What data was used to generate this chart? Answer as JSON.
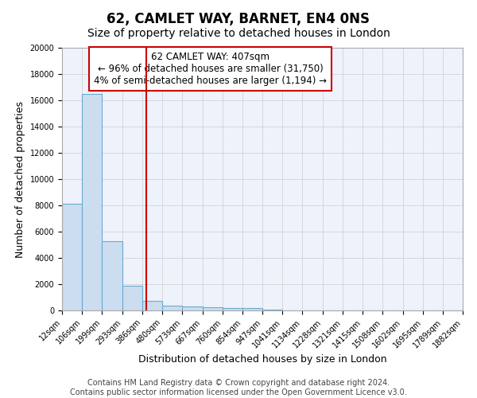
{
  "title": "62, CAMLET WAY, BARNET, EN4 0NS",
  "subtitle": "Size of property relative to detached houses in London",
  "xlabel": "Distribution of detached houses by size in London",
  "ylabel": "Number of detached properties",
  "footnote1": "Contains HM Land Registry data © Crown copyright and database right 2024.",
  "footnote2": "Contains public sector information licensed under the Open Government Licence v3.0.",
  "annotation_line1": "62 CAMLET WAY: 407sqm",
  "annotation_line2": "← 96% of detached houses are smaller (31,750)",
  "annotation_line3": "4% of semi-detached houses are larger (1,194) →",
  "bar_color": "#ccddf0",
  "bar_edge_color": "#6aabd2",
  "vline_color": "#cc0000",
  "vline_x": 407,
  "bin_edges": [
    12,
    106,
    199,
    293,
    386,
    480,
    573,
    667,
    760,
    854,
    947,
    1041,
    1134,
    1228,
    1321,
    1415,
    1508,
    1602,
    1695,
    1789,
    1882
  ],
  "bar_heights": [
    8100,
    16500,
    5300,
    1900,
    700,
    350,
    275,
    230,
    200,
    175,
    50,
    30,
    20,
    15,
    10,
    8,
    6,
    5,
    4,
    3
  ],
  "ylim": [
    0,
    20000
  ],
  "yticks": [
    0,
    2000,
    4000,
    6000,
    8000,
    10000,
    12000,
    14000,
    16000,
    18000,
    20000
  ],
  "background_color": "#eef2fb",
  "grid_color": "#cccccc",
  "fig_background": "#ffffff",
  "title_fontsize": 12,
  "subtitle_fontsize": 10,
  "label_fontsize": 9,
  "tick_fontsize": 7,
  "annotation_fontsize": 8.5,
  "footnote_fontsize": 7
}
